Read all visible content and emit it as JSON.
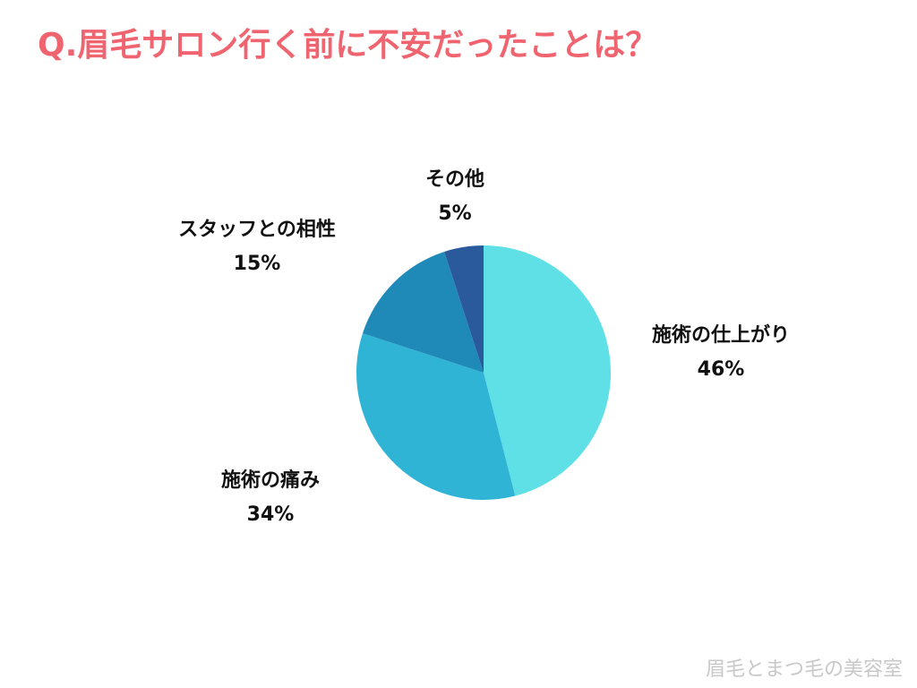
{
  "chart_data": {
    "type": "pie",
    "title": "Q.眉毛サロン行く前に不安だったことは？",
    "categories": [
      "施術の仕上がり",
      "施術の痛み",
      "スタッフとの相性",
      "その他"
    ],
    "values": [
      46,
      34,
      15,
      5
    ],
    "value_labels": [
      "46%",
      "34%",
      "15%",
      "5%"
    ],
    "colors": [
      "#5ee0e6",
      "#30b4d6",
      "#1f8ab8",
      "#2a5a9c"
    ]
  },
  "watermark": "眉毛とまつ毛の美容室"
}
